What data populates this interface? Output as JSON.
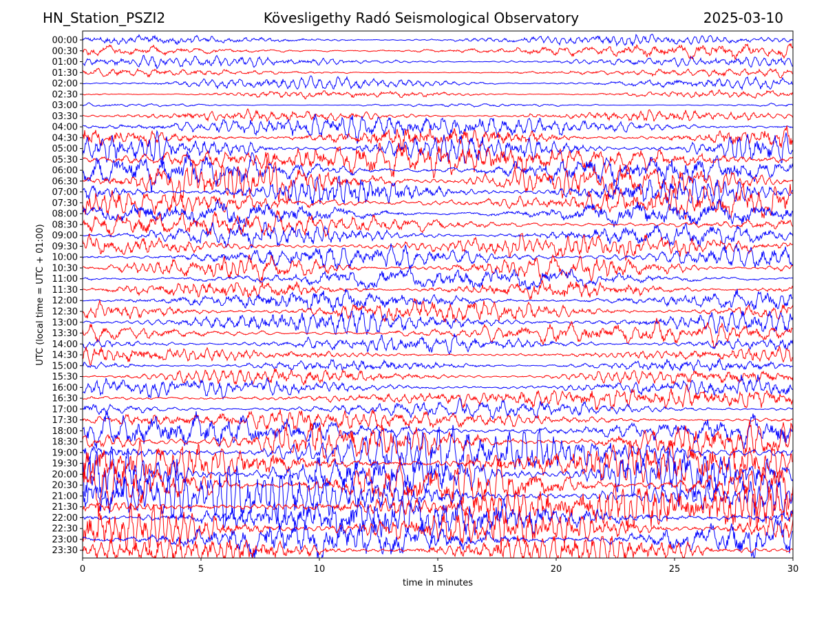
{
  "header": {
    "station": "HN_Station_PSZI2",
    "observatory": "Kövesligethy Radó Seismological Observatory",
    "date": "2025-03-10"
  },
  "colors": {
    "even_trace": "#0000ff",
    "odd_trace": "#ff0000",
    "axes": "#000000",
    "background": "#ffffff"
  },
  "chart_data": {
    "type": "line",
    "title": "Kövesligethy Radó Seismological Observatory",
    "xlabel": "time in minutes",
    "ylabel": "UTC (local time = UTC + 01:00)",
    "xlim": [
      0,
      30
    ],
    "x_ticks": [
      0,
      5,
      10,
      15,
      20,
      25,
      30
    ],
    "y_ticks": [
      "00:00",
      "00:30",
      "01:00",
      "01:30",
      "02:00",
      "02:30",
      "03:00",
      "03:30",
      "04:00",
      "04:30",
      "05:00",
      "05:30",
      "06:00",
      "06:30",
      "07:00",
      "07:30",
      "08:00",
      "08:30",
      "09:00",
      "09:30",
      "10:00",
      "10:30",
      "11:00",
      "11:30",
      "12:00",
      "12:30",
      "13:00",
      "13:30",
      "14:00",
      "14:30",
      "15:00",
      "15:30",
      "16:00",
      "16:30",
      "17:00",
      "17:30",
      "18:00",
      "18:30",
      "19:00",
      "19:30",
      "20:00",
      "20:30",
      "21:00",
      "21:30",
      "22:00",
      "22:30",
      "23:00",
      "23:30"
    ],
    "grid": false,
    "trace_color_pattern": [
      "blue",
      "red"
    ],
    "trace_amplitude": [
      0.5,
      0.7,
      0.5,
      0.45,
      0.55,
      0.4,
      0.15,
      0.6,
      1.2,
      1.3,
      1.4,
      1.5,
      1.6,
      1.6,
      1.5,
      1.5,
      1.3,
      1.2,
      1.1,
      1.0,
      1.2,
      1.1,
      1.0,
      1.0,
      1.1,
      1.2,
      1.2,
      1.0,
      0.9,
      0.8,
      0.7,
      0.8,
      0.9,
      1.0,
      0.8,
      1.0,
      1.6,
      1.8,
      2.0,
      2.2,
      2.4,
      2.4,
      2.5,
      2.4,
      2.4,
      2.2,
      2.0,
      1.8
    ]
  }
}
